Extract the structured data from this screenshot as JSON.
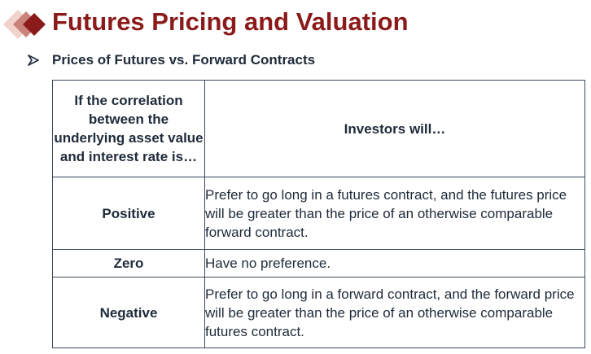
{
  "header": {
    "title": "Futures Pricing and Valuation",
    "logo_colors": [
      "#f0c8c0",
      "#c87870",
      "#8b1a1a"
    ]
  },
  "section": {
    "bullet_icon": "arrow-bullet-icon",
    "subtitle": "Prices of Futures vs. Forward Contracts"
  },
  "table": {
    "headers": [
      "If the correlation between the underlying asset value and interest rate is…",
      "Investors will…"
    ],
    "rows": [
      {
        "label": "Positive",
        "desc": "Prefer to go long in a futures contract, and the futures price will be greater than the price of an otherwise comparable forward contract."
      },
      {
        "label": "Zero",
        "desc": "Have no preference."
      },
      {
        "label": "Negative",
        "desc": "Prefer to go long in a forward contract, and the forward price will be greater than the price of an otherwise comparable futures contract."
      }
    ]
  }
}
